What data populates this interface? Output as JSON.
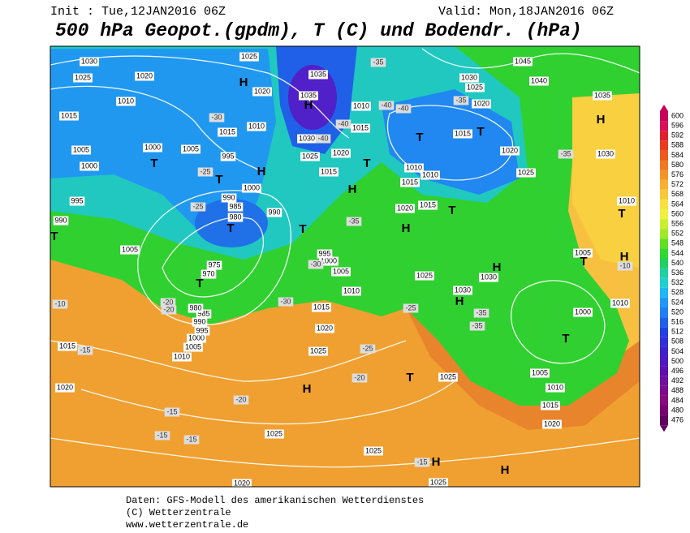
{
  "header": {
    "init": "Init : Tue,12JAN2016 06Z",
    "valid": "Valid: Mon,18JAN2016 06Z",
    "title": "500 hPa Geopot.(gpdm), T (C) und Bodendr. (hPa)"
  },
  "map": {
    "pressure_labels": [
      "1030",
      "1025",
      "1020",
      "1010",
      "1015",
      "1005",
      "1000",
      "1000",
      "1005",
      "995",
      "990",
      "1005",
      "1025",
      "1020",
      "1035",
      "1035",
      "1015",
      "1010",
      "995",
      "1000",
      "990",
      "985",
      "980",
      "990",
      "1030",
      "1025",
      "1020",
      "1015",
      "1010",
      "1015",
      "1030",
      "1025",
      "1020",
      "1045",
      "1040",
      "1035",
      "1030",
      "1015",
      "1020",
      "1025",
      "1010",
      "1010",
      "1015",
      "1015",
      "1020",
      "1010",
      "1005",
      "1010",
      "1000",
      "1005",
      "1010",
      "1015",
      "1020",
      "1025",
      "1030",
      "1030",
      "1025",
      "1025",
      "1020",
      "1015",
      "1010",
      "1005",
      "1000",
      "995",
      "975",
      "970",
      "1000",
      "995",
      "990",
      "985",
      "980",
      "1005",
      "1010",
      "1015",
      "1020",
      "1025",
      "1025",
      "1025",
      "1020"
    ],
    "temperature_labels": [
      "-35",
      "-35",
      "-30",
      "-25",
      "-25",
      "-40",
      "-40",
      "-40",
      "-40",
      "-35",
      "-30",
      "-30",
      "-25",
      "-35",
      "-35",
      "-35",
      "-20",
      "-20",
      "-10",
      "-15",
      "-20",
      "-20",
      "-15",
      "-15",
      "-15",
      "-15",
      "-25",
      "-10"
    ],
    "centers": [
      "H",
      "H",
      "H",
      "H",
      "H",
      "H",
      "H",
      "H",
      "H",
      "H",
      "H",
      "H",
      "T",
      "T",
      "T",
      "T",
      "T",
      "T",
      "T",
      "T",
      "T",
      "T",
      "T",
      "T",
      "T",
      "T"
    ]
  },
  "colorbar": {
    "ticks": [
      600,
      596,
      592,
      588,
      584,
      580,
      576,
      572,
      568,
      564,
      560,
      556,
      552,
      548,
      544,
      540,
      536,
      532,
      528,
      524,
      520,
      516,
      512,
      508,
      504,
      500,
      496,
      492,
      488,
      484,
      480,
      476
    ],
    "colors": [
      "#c8005a",
      "#d8105a",
      "#e02030",
      "#e83c20",
      "#ec5a1c",
      "#f07820",
      "#f49428",
      "#f8b030",
      "#f8c838",
      "#f8e040",
      "#f0f040",
      "#c8f030",
      "#a0e828",
      "#60e020",
      "#30d830",
      "#20d060",
      "#20d0a0",
      "#20d0d0",
      "#20b8f0",
      "#2098f8",
      "#2080f0",
      "#2060e8",
      "#2040e0",
      "#3030d8",
      "#4020c8",
      "#5018c0",
      "#6010b0",
      "#7010a0",
      "#800890",
      "#880880",
      "#780070",
      "#600060"
    ]
  },
  "footer": {
    "line1": "Daten: GFS-Modell des amerikanischen Wetterdienstes",
    "line2": "(C) Wetterzentrale",
    "line3": "www.wetterzentrale.de"
  }
}
